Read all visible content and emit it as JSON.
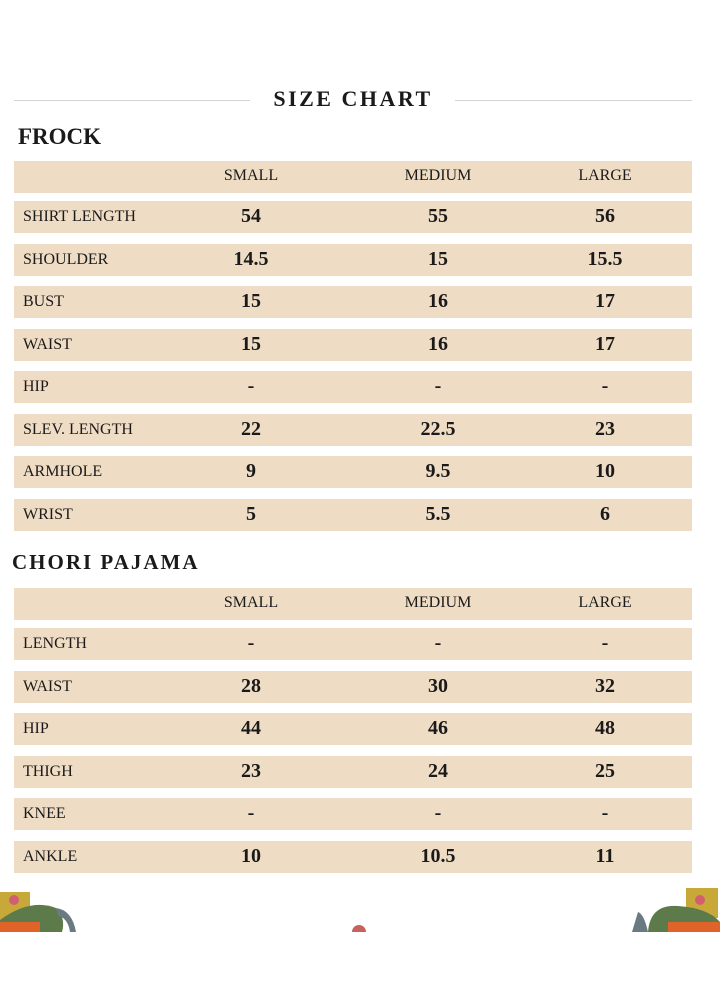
{
  "title": "SIZE CHART",
  "columns": [
    "SMALL",
    "MEDIUM",
    "LARGE"
  ],
  "frock": {
    "heading": "FROCK",
    "rows": [
      {
        "label": "SHIRT LENGTH",
        "values": [
          "54",
          "55",
          "56"
        ]
      },
      {
        "label": "SHOULDER",
        "values": [
          "14.5",
          "15",
          "15.5"
        ]
      },
      {
        "label": "BUST",
        "values": [
          "15",
          "16",
          "17"
        ]
      },
      {
        "label": "WAIST",
        "values": [
          "15",
          "16",
          "17"
        ]
      },
      {
        "label": "HIP",
        "values": [
          "-",
          "-",
          "-"
        ]
      },
      {
        "label": "SLEV. LENGTH",
        "values": [
          "22",
          "22.5",
          "23"
        ]
      },
      {
        "label": "ARMHOLE",
        "values": [
          "9",
          "9.5",
          "10"
        ]
      },
      {
        "label": "WRIST",
        "values": [
          "5",
          "5.5",
          "6"
        ]
      }
    ]
  },
  "pajama": {
    "heading": "CHORI PAJAMA",
    "rows": [
      {
        "label": "LENGTH",
        "values": [
          "-",
          "-",
          "-"
        ]
      },
      {
        "label": "WAIST",
        "values": [
          "28",
          "30",
          "32"
        ]
      },
      {
        "label": "HIP",
        "values": [
          "44",
          "46",
          "48"
        ]
      },
      {
        "label": "THIGH",
        "values": [
          "23",
          "24",
          "25"
        ]
      },
      {
        "label": "KNEE",
        "values": [
          "-",
          "-",
          "-"
        ]
      },
      {
        "label": "ANKLE",
        "values": [
          "10",
          "10.5",
          "11"
        ]
      }
    ]
  },
  "colors": {
    "row_bg": "#efdcc4",
    "rule": "#d4d4d4"
  }
}
